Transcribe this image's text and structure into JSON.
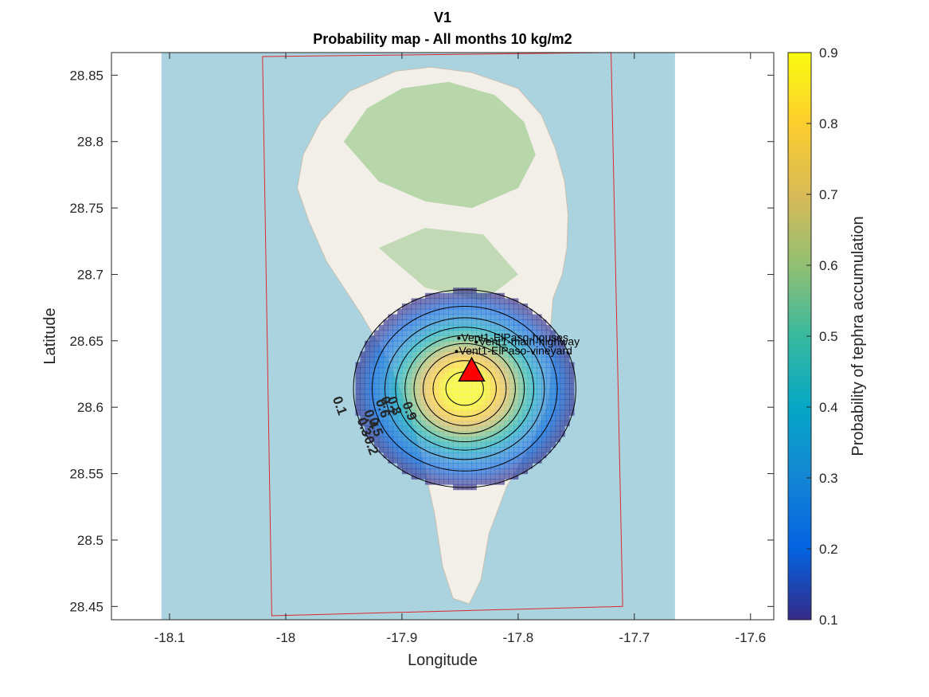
{
  "chart_data": {
    "type": "heatmap",
    "title": "V1",
    "subtitle": "Probability map - All months 10 kg/m2",
    "xlabel": "Longitude",
    "ylabel": "Latitude",
    "xlim": [
      -18.15,
      -17.58
    ],
    "ylim": [
      28.44,
      28.867
    ],
    "xticks": [
      -18.1,
      -18,
      -17.9,
      -17.8,
      -17.7,
      -17.6
    ],
    "yticks": [
      28.45,
      28.5,
      28.55,
      28.6,
      28.65,
      28.7,
      28.75,
      28.8,
      28.85
    ],
    "xtick_labels": [
      "-18.1",
      "-18",
      "-17.9",
      "-17.8",
      "-17.7",
      "-17.6"
    ],
    "ytick_labels": [
      "28.45",
      "28.5",
      "28.55",
      "28.6",
      "28.65",
      "28.7",
      "28.75",
      "28.8",
      "28.85"
    ],
    "colorbar": {
      "label": "Probability of tephra accumulation",
      "range": [
        0.1,
        0.9
      ],
      "ticks": [
        0.1,
        0.2,
        0.3,
        0.4,
        0.5,
        0.6,
        0.7,
        0.8,
        0.9
      ],
      "tick_labels": [
        "0.1",
        "0.2",
        "0.3",
        "0.4",
        "0.5",
        "0.6",
        "0.7",
        "0.8",
        "0.9"
      ],
      "colormap": [
        "#352a87",
        "#0363e1",
        "#1485d4",
        "#06a7c6",
        "#38b99e",
        "#92bf73",
        "#d9ba56",
        "#fcce2e",
        "#f9fb0e"
      ]
    },
    "colors": {
      "sea": "#aad3df",
      "land": "#f2efe9",
      "vegetation": "#add19e",
      "domain_box": "#e0262b",
      "vent": "#ff0000",
      "contour": "#000000"
    },
    "vent": {
      "lon": -17.84,
      "lat": 28.627
    },
    "domain_box": [
      [
        -18.02,
        28.864
      ],
      [
        -17.72,
        28.867
      ],
      [
        -17.71,
        28.45
      ],
      [
        -18.012,
        28.443
      ]
    ],
    "probability_field": {
      "center": {
        "lon": -17.846,
        "lat": 28.614
      },
      "sigma_lon": 0.045,
      "sigma_lat": 0.035,
      "peak": 0.96,
      "display_threshold": 0.1
    },
    "contours": [
      {
        "level": 0.1,
        "label": "0.1",
        "label_lon": -17.957,
        "label_lat": 28.6
      },
      {
        "level": 0.2,
        "label": "0.2",
        "label_lon": -17.93,
        "label_lat": 28.57
      },
      {
        "level": 0.3,
        "label": "0.3",
        "label_lon": -17.936,
        "label_lat": 28.584
      },
      {
        "level": 0.4,
        "label": "0.4",
        "label_lon": -17.93,
        "label_lat": 28.59
      },
      {
        "level": 0.5,
        "label": "0.5",
        "label_lon": -17.926,
        "label_lat": 28.584
      },
      {
        "level": 0.6,
        "label": "0.6",
        "label_lon": -17.92,
        "label_lat": 28.598
      },
      {
        "level": 0.7,
        "label": "0.7",
        "label_lon": -17.916,
        "label_lat": 28.6
      },
      {
        "level": 0.8,
        "label": "0.8",
        "label_lon": -17.91,
        "label_lat": 28.6
      },
      {
        "level": 0.9,
        "label": "0.9",
        "label_lon": -17.897,
        "label_lat": 28.596
      }
    ],
    "stations": [
      {
        "name": "Vent1-ElPaso-houses",
        "lon": -17.851,
        "lat": 28.652
      },
      {
        "name": "Vent1-main-highway",
        "lon": -17.836,
        "lat": 28.649
      },
      {
        "name": "Vent1-ElPaso-vineyard",
        "lon": -17.853,
        "lat": 28.642
      }
    ]
  }
}
